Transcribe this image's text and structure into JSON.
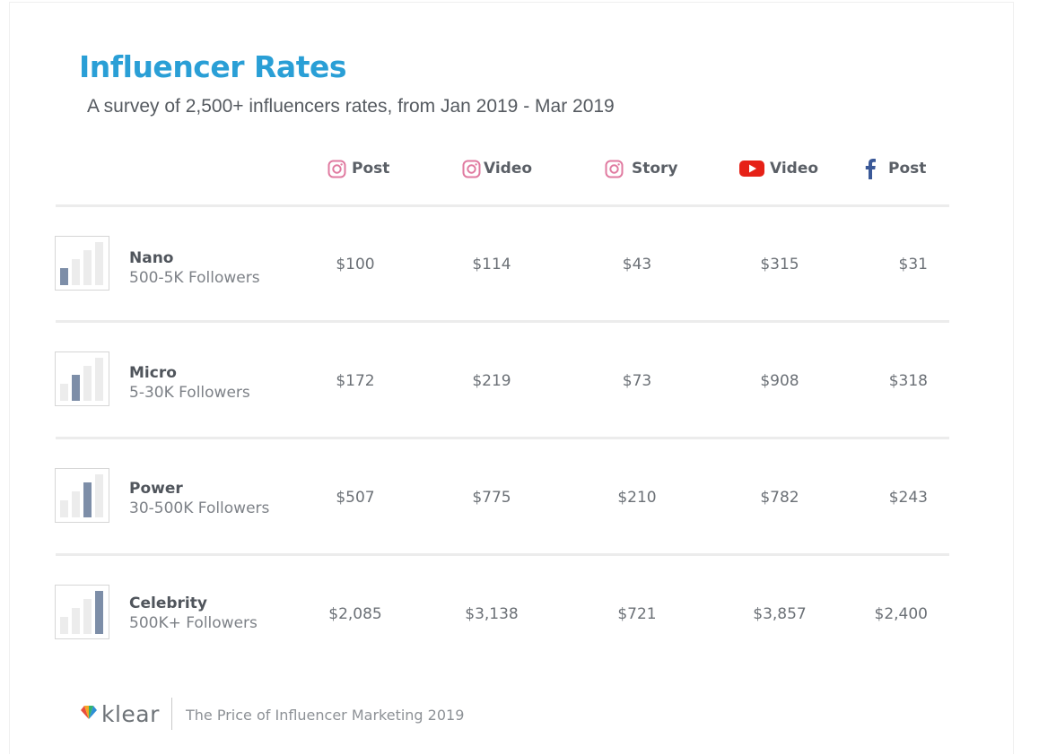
{
  "title": "Influencer Rates",
  "subtitle": "A survey of 2,500+ influencers rates, from Jan 2019 - Mar 2019",
  "columns": [
    {
      "label": "Post",
      "icon": "instagram-icon",
      "color": "#e07aa0"
    },
    {
      "label": "Video",
      "icon": "instagram-icon",
      "color": "#e07aa0"
    },
    {
      "label": "Story",
      "icon": "instagram-icon",
      "color": "#e07aa0"
    },
    {
      "label": "Video",
      "icon": "youtube-icon",
      "color": "#e62117"
    },
    {
      "label": "Post",
      "icon": "facebook-icon",
      "color": "#3b5998"
    }
  ],
  "tiers": [
    {
      "name": "Nano",
      "followers": "500-5K Followers",
      "level": 1,
      "rates": [
        "$100",
        "$114",
        "$43",
        "$315",
        "$31"
      ]
    },
    {
      "name": "Micro",
      "followers": "5-30K Followers",
      "level": 2,
      "rates": [
        "$172",
        "$219",
        "$73",
        "$908",
        "$318"
      ]
    },
    {
      "name": "Power",
      "followers": "30-500K Followers",
      "level": 3,
      "rates": [
        "$507",
        "$775",
        "$210",
        "$782",
        "$243"
      ]
    },
    {
      "name": "Celebrity",
      "followers": "500K+ Followers",
      "level": 4,
      "rates": [
        "$2,085",
        "$3,138",
        "$721",
        "$3,857",
        "$2,400"
      ]
    }
  ],
  "footer": {
    "brand": "klear",
    "tagline": "The Price of Influencer Marketing 2019"
  },
  "colors": {
    "title": "#2a9fd6",
    "bar_active": "#7d8ea8",
    "bar_inactive": "#ececec"
  }
}
